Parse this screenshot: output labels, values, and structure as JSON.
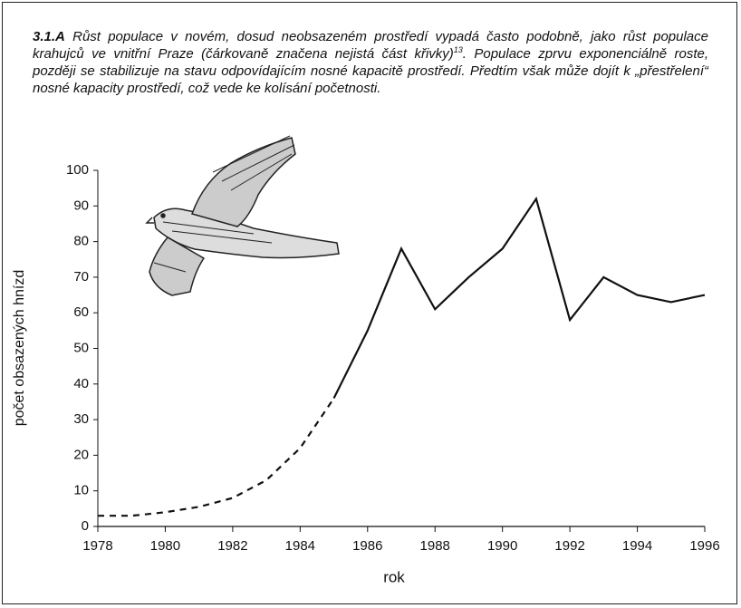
{
  "chart_data": {
    "type": "line",
    "caption": {
      "label": "3.1.A",
      "text": "Růst populace v novém, dosud neobsazeném prostředí vypadá často podobně, jako růst populace krahujců ve vnitřní Praze (čárkovaně značena nejistá část křivky)",
      "ref": "13",
      "text_after": ". Populace zprvu exponenciálně roste, později se stabilizuje na stavu odpovídajícím nosné kapacitě prostředí. Předtím však může dojít k „přestřelení“ nosné kapacity prostředí, což vede ke kolísání početnosti."
    },
    "xlabel": "rok",
    "ylabel": "počet obsazených hnízd",
    "x": [
      1978,
      1979,
      1980,
      1981,
      1982,
      1983,
      1984,
      1985,
      1986,
      1987,
      1988,
      1989,
      1990,
      1991,
      1992,
      1993,
      1994,
      1995,
      1996
    ],
    "series": [
      {
        "color": "#111111",
        "dashed": true,
        "values": [
          3,
          3,
          4,
          5.5,
          8,
          13,
          22,
          36,
          null,
          null,
          null,
          null,
          null,
          null,
          null,
          null,
          null,
          null,
          null
        ]
      },
      {
        "color": "#111111",
        "dashed": false,
        "values": [
          null,
          null,
          null,
          null,
          null,
          null,
          null,
          36,
          55,
          78,
          61,
          70,
          78,
          92,
          58,
          70,
          65,
          63,
          65
        ]
      }
    ],
    "xlim": [
      1978,
      1996
    ],
    "xticks": [
      1978,
      1980,
      1982,
      1984,
      1986,
      1988,
      1990,
      1992,
      1994,
      1996
    ],
    "ylim": [
      0,
      100
    ],
    "yticks": [
      0,
      10,
      20,
      30,
      40,
      50,
      60,
      70,
      80,
      90,
      100
    ],
    "grid": false
  }
}
